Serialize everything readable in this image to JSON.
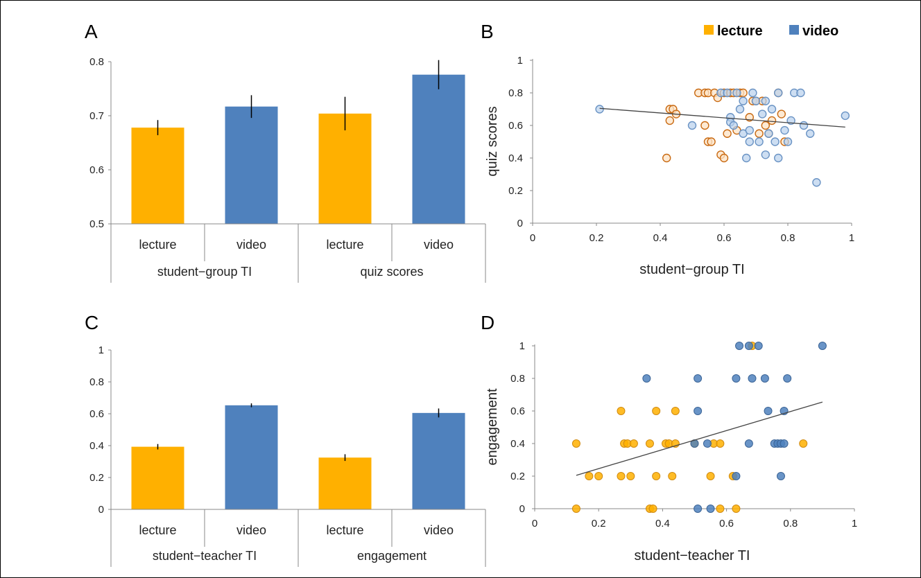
{
  "colors": {
    "lecture": "#FFB000",
    "video": "#4F81BD",
    "lecture_edge": "#C96A12",
    "video_light": "#B8D0EC",
    "video_edge": "#6A93C4",
    "trend": "#444444"
  },
  "legend": {
    "lecture": "lecture",
    "video": "video"
  },
  "chart_data": [
    {
      "id": "A",
      "type": "bar",
      "letter": "A",
      "ylim": [
        0.5,
        0.8
      ],
      "yticks": [
        "0.5",
        "0.6",
        "0.7",
        "0.8"
      ],
      "groups": [
        "student−group TI",
        "quiz scores"
      ],
      "categories": [
        "lecture",
        "video",
        "lecture",
        "video"
      ],
      "values": [
        0.678,
        0.717,
        0.704,
        0.776
      ],
      "errors": [
        0.014,
        0.021,
        0.031,
        0.027
      ],
      "series_keys": [
        "lecture",
        "video",
        "lecture",
        "video"
      ]
    },
    {
      "id": "C",
      "type": "bar",
      "letter": "C",
      "ylim": [
        0,
        1
      ],
      "yticks": [
        "0",
        "0.2",
        "0.4",
        "0.6",
        "0.8",
        "1"
      ],
      "groups": [
        "student−teacher TI",
        "engagement"
      ],
      "categories": [
        "lecture",
        "video",
        "lecture",
        "video"
      ],
      "values": [
        0.393,
        0.653,
        0.325,
        0.605
      ],
      "errors": [
        0.017,
        0.012,
        0.021,
        0.028
      ],
      "series_keys": [
        "lecture",
        "video",
        "lecture",
        "video"
      ]
    },
    {
      "id": "B",
      "type": "scatter",
      "letter": "B",
      "xlabel": "student−group TI",
      "ylabel": "quiz scores",
      "xlim": [
        0,
        1
      ],
      "ylim": [
        0,
        1
      ],
      "xticks": [
        "0",
        "0.2",
        "0.4",
        "0.6",
        "0.8",
        "1"
      ],
      "yticks": [
        "0",
        "0.2",
        "0.4",
        "0.6",
        "0.8",
        "1"
      ],
      "trend": [
        [
          0.21,
          0.705
        ],
        [
          0.98,
          0.59
        ]
      ],
      "series": [
        {
          "key": "lecture",
          "style": "ring",
          "points": [
            [
              0.42,
              0.4
            ],
            [
              0.43,
              0.63
            ],
            [
              0.43,
              0.7
            ],
            [
              0.44,
              0.7
            ],
            [
              0.45,
              0.67
            ],
            [
              0.52,
              0.8
            ],
            [
              0.54,
              0.8
            ],
            [
              0.55,
              0.8
            ],
            [
              0.54,
              0.6
            ],
            [
              0.55,
              0.5
            ],
            [
              0.56,
              0.5
            ],
            [
              0.57,
              0.8
            ],
            [
              0.58,
              0.77
            ],
            [
              0.59,
              0.42
            ],
            [
              0.6,
              0.4
            ],
            [
              0.6,
              0.8
            ],
            [
              0.61,
              0.55
            ],
            [
              0.62,
              0.8
            ],
            [
              0.63,
              0.8
            ],
            [
              0.64,
              0.57
            ],
            [
              0.65,
              0.8
            ],
            [
              0.66,
              0.8
            ],
            [
              0.68,
              0.65
            ],
            [
              0.69,
              0.75
            ],
            [
              0.7,
              0.75
            ],
            [
              0.71,
              0.55
            ],
            [
              0.72,
              0.75
            ],
            [
              0.73,
              0.6
            ],
            [
              0.74,
              0.55
            ],
            [
              0.75,
              0.63
            ],
            [
              0.77,
              0.8
            ],
            [
              0.78,
              0.67
            ],
            [
              0.79,
              0.5
            ]
          ]
        },
        {
          "key": "video",
          "style": "ring",
          "points": [
            [
              0.21,
              0.7
            ],
            [
              0.5,
              0.6
            ],
            [
              0.59,
              0.8
            ],
            [
              0.61,
              0.8
            ],
            [
              0.62,
              0.65
            ],
            [
              0.62,
              0.62
            ],
            [
              0.63,
              0.6
            ],
            [
              0.64,
              0.8
            ],
            [
              0.65,
              0.7
            ],
            [
              0.66,
              0.75
            ],
            [
              0.66,
              0.55
            ],
            [
              0.67,
              0.4
            ],
            [
              0.68,
              0.5
            ],
            [
              0.68,
              0.57
            ],
            [
              0.69,
              0.8
            ],
            [
              0.7,
              0.75
            ],
            [
              0.71,
              0.5
            ],
            [
              0.72,
              0.67
            ],
            [
              0.73,
              0.75
            ],
            [
              0.73,
              0.42
            ],
            [
              0.74,
              0.55
            ],
            [
              0.75,
              0.7
            ],
            [
              0.76,
              0.5
            ],
            [
              0.77,
              0.4
            ],
            [
              0.77,
              0.8
            ],
            [
              0.79,
              0.57
            ],
            [
              0.8,
              0.5
            ],
            [
              0.81,
              0.63
            ],
            [
              0.82,
              0.8
            ],
            [
              0.84,
              0.8
            ],
            [
              0.85,
              0.6
            ],
            [
              0.87,
              0.55
            ],
            [
              0.89,
              0.25
            ],
            [
              0.98,
              0.66
            ]
          ]
        }
      ]
    },
    {
      "id": "D",
      "type": "scatter",
      "letter": "D",
      "xlabel": "student−teacher TI",
      "ylabel": "engagement",
      "xlim": [
        0,
        1
      ],
      "ylim": [
        0,
        1
      ],
      "xticks": [
        "0",
        "0.2",
        "0.4",
        "0.6",
        "0.8",
        "1"
      ],
      "yticks": [
        "0",
        "0.2",
        "0.4",
        "0.6",
        "0.8",
        "1"
      ],
      "trend": [
        [
          0.13,
          0.205
        ],
        [
          0.9,
          0.655
        ]
      ],
      "series": [
        {
          "key": "lecture",
          "style": "filled",
          "points": [
            [
              0.13,
              0.0
            ],
            [
              0.13,
              0.4
            ],
            [
              0.17,
              0.2
            ],
            [
              0.2,
              0.2
            ],
            [
              0.27,
              0.2
            ],
            [
              0.27,
              0.6
            ],
            [
              0.28,
              0.4
            ],
            [
              0.29,
              0.4
            ],
            [
              0.3,
              0.2
            ],
            [
              0.31,
              0.4
            ],
            [
              0.36,
              0.0
            ],
            [
              0.36,
              0.4
            ],
            [
              0.37,
              0.0
            ],
            [
              0.38,
              0.6
            ],
            [
              0.38,
              0.2
            ],
            [
              0.41,
              0.4
            ],
            [
              0.42,
              0.4
            ],
            [
              0.43,
              0.2
            ],
            [
              0.44,
              0.4
            ],
            [
              0.44,
              0.6
            ],
            [
              0.5,
              0.4
            ],
            [
              0.55,
              0.2
            ],
            [
              0.56,
              0.4
            ],
            [
              0.58,
              0.0
            ],
            [
              0.58,
              0.4
            ],
            [
              0.62,
              0.2
            ],
            [
              0.63,
              0.0
            ],
            [
              0.68,
              1.0
            ],
            [
              0.84,
              0.4
            ]
          ]
        },
        {
          "key": "video",
          "style": "filled",
          "points": [
            [
              0.35,
              0.8
            ],
            [
              0.5,
              0.4
            ],
            [
              0.51,
              0.8
            ],
            [
              0.51,
              0.6
            ],
            [
              0.51,
              0.0
            ],
            [
              0.54,
              0.4
            ],
            [
              0.55,
              0.0
            ],
            [
              0.63,
              0.8
            ],
            [
              0.63,
              0.2
            ],
            [
              0.64,
              1.0
            ],
            [
              0.67,
              0.4
            ],
            [
              0.67,
              1.0
            ],
            [
              0.68,
              0.8
            ],
            [
              0.7,
              1.0
            ],
            [
              0.72,
              0.8
            ],
            [
              0.73,
              0.6
            ],
            [
              0.75,
              0.4
            ],
            [
              0.76,
              0.4
            ],
            [
              0.77,
              0.4
            ],
            [
              0.77,
              0.2
            ],
            [
              0.78,
              0.4
            ],
            [
              0.78,
              0.6
            ],
            [
              0.79,
              0.8
            ],
            [
              0.9,
              1.0
            ]
          ]
        }
      ]
    }
  ]
}
